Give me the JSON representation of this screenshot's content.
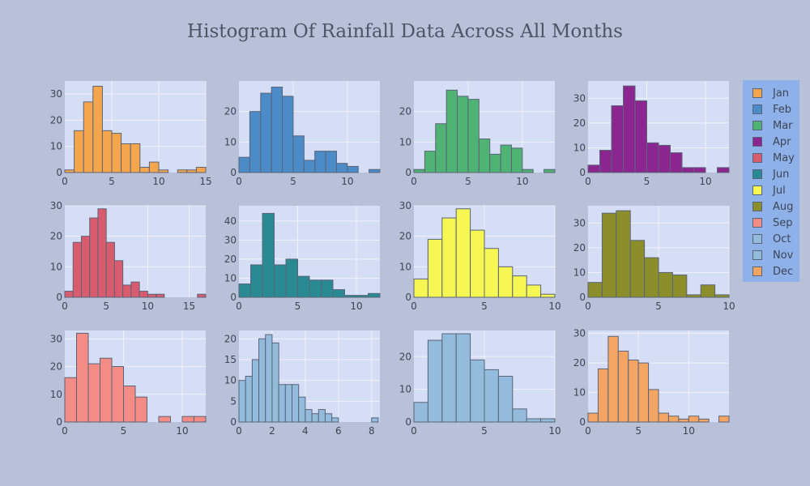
{
  "title": "Histogram Of Rainfall Data Across All Months",
  "colors": {
    "background": "#b9c1d9",
    "plot_background": "#d6def5",
    "legend_background": "#8fb1ea",
    "bar_outline": "#5a6478"
  },
  "legend": {
    "placement": "right",
    "items": [
      {
        "label": "Jan",
        "color": "#f5a54c"
      },
      {
        "label": "Feb",
        "color": "#4b8bc8"
      },
      {
        "label": "Mar",
        "color": "#4fb374"
      },
      {
        "label": "Apr",
        "color": "#8b2590"
      },
      {
        "label": "May",
        "color": "#d85b6e"
      },
      {
        "label": "Jun",
        "color": "#2a8a94"
      },
      {
        "label": "Jul",
        "color": "#f7f753"
      },
      {
        "label": "Aug",
        "color": "#8c8e2a"
      },
      {
        "label": "Sep",
        "color": "#f28c85"
      },
      {
        "label": "Oct",
        "color": "#93bbdc"
      },
      {
        "label": "Nov",
        "color": "#93bbdc"
      },
      {
        "label": "Dec",
        "color": "#f5a563"
      }
    ]
  },
  "chart_data": [
    {
      "type": "bar",
      "name": "Jan",
      "color": "#f5a54c",
      "grid": true,
      "xlim": [
        0,
        15
      ],
      "ylim": [
        0,
        35
      ],
      "xticks": [
        0,
        5,
        10,
        15
      ],
      "yticks": [
        0,
        10,
        20,
        30
      ],
      "bin_start": 0,
      "bin_width": 1,
      "values": [
        1,
        16,
        27,
        33,
        16,
        15,
        11,
        11,
        2,
        4,
        1,
        0,
        1,
        1,
        2
      ]
    },
    {
      "type": "bar",
      "name": "Feb",
      "color": "#4b8bc8",
      "grid": true,
      "xlim": [
        0,
        13
      ],
      "ylim": [
        0,
        30
      ],
      "xticks": [
        0,
        5,
        10
      ],
      "yticks": [
        0,
        10,
        20
      ],
      "bin_start": 0,
      "bin_width": 1,
      "values": [
        5,
        20,
        26,
        28,
        25,
        12,
        4,
        7,
        7,
        3,
        2,
        0,
        1
      ]
    },
    {
      "type": "bar",
      "name": "Mar",
      "color": "#4fb374",
      "grid": true,
      "xlim": [
        0,
        13
      ],
      "ylim": [
        0,
        30
      ],
      "xticks": [
        0,
        5,
        10
      ],
      "yticks": [
        0,
        10,
        20
      ],
      "bin_start": 0,
      "bin_width": 1,
      "values": [
        1,
        7,
        16,
        27,
        25,
        24,
        11,
        6,
        9,
        8,
        1,
        0,
        1
      ]
    },
    {
      "type": "bar",
      "name": "Apr",
      "color": "#8b2590",
      "grid": true,
      "xlim": [
        0,
        12
      ],
      "ylim": [
        0,
        37
      ],
      "xticks": [
        0,
        5,
        10
      ],
      "yticks": [
        0,
        10,
        20,
        30
      ],
      "bin_start": 0,
      "bin_width": 1,
      "values": [
        3,
        9,
        27,
        35,
        29,
        12,
        11,
        8,
        2,
        2,
        0,
        2
      ]
    },
    {
      "type": "bar",
      "name": "May",
      "color": "#d85b6e",
      "grid": true,
      "xlim": [
        0,
        17
      ],
      "ylim": [
        0,
        30
      ],
      "xticks": [
        0,
        5,
        10,
        15
      ],
      "yticks": [
        0,
        10,
        20,
        30
      ],
      "bin_start": 0,
      "bin_width": 1,
      "values": [
        2,
        18,
        20,
        26,
        29,
        18,
        12,
        4,
        5,
        2,
        1,
        1,
        0,
        0,
        0,
        0,
        1
      ]
    },
    {
      "type": "bar",
      "name": "Jun",
      "color": "#2a8a94",
      "grid": true,
      "xlim": [
        0,
        12
      ],
      "ylim": [
        0,
        48
      ],
      "xticks": [
        0,
        5,
        10
      ],
      "yticks": [
        0,
        10,
        20,
        30,
        40
      ],
      "bin_start": 0,
      "bin_width": 1,
      "values": [
        7,
        17,
        44,
        17,
        20,
        11,
        9,
        9,
        4,
        1,
        1,
        2
      ]
    },
    {
      "type": "bar",
      "name": "Jul",
      "color": "#f7f753",
      "grid": true,
      "xlim": [
        0,
        10
      ],
      "ylim": [
        0,
        30
      ],
      "xticks": [
        0,
        5,
        10
      ],
      "yticks": [
        0,
        10,
        20,
        30
      ],
      "bin_start": 0,
      "bin_width": 1,
      "values": [
        6,
        19,
        26,
        29,
        22,
        16,
        10,
        7,
        4,
        1
      ]
    },
    {
      "type": "bar",
      "name": "Aug",
      "color": "#8c8e2a",
      "grid": true,
      "xlim": [
        0,
        10
      ],
      "ylim": [
        0,
        37
      ],
      "xticks": [
        0,
        5,
        10
      ],
      "yticks": [
        0,
        10,
        20,
        30
      ],
      "bin_start": 0,
      "bin_width": 1,
      "values": [
        6,
        34,
        35,
        23,
        16,
        10,
        9,
        1,
        5,
        1
      ]
    },
    {
      "type": "bar",
      "name": "Sep",
      "color": "#f28c85",
      "grid": true,
      "xlim": [
        0,
        12
      ],
      "ylim": [
        0,
        33
      ],
      "xticks": [
        0,
        5,
        10
      ],
      "yticks": [
        0,
        10,
        20,
        30
      ],
      "bin_start": 0,
      "bin_width": 1,
      "values": [
        16,
        32,
        21,
        23,
        20,
        13,
        9,
        0,
        2,
        0,
        2,
        2
      ]
    },
    {
      "type": "bar",
      "name": "Oct",
      "color": "#93bbdc",
      "grid": true,
      "xlim": [
        0,
        8.5
      ],
      "ylim": [
        0,
        22
      ],
      "xticks": [
        0,
        2,
        4,
        6,
        8
      ],
      "yticks": [
        0,
        5,
        10,
        15,
        20
      ],
      "bin_start": 0,
      "bin_width": 0.4,
      "values": [
        10,
        11,
        15,
        20,
        21,
        19,
        9,
        9,
        9,
        6,
        3,
        2,
        3,
        2,
        1,
        0,
        0,
        0,
        0,
        0,
        1
      ]
    },
    {
      "type": "bar",
      "name": "Nov",
      "color": "#93bbdc",
      "grid": true,
      "xlim": [
        0,
        10
      ],
      "ylim": [
        0,
        28
      ],
      "xticks": [
        0,
        5,
        10
      ],
      "yticks": [
        0,
        10,
        20
      ],
      "bin_start": 0,
      "bin_width": 1,
      "values": [
        6,
        25,
        27,
        27,
        19,
        16,
        14,
        4,
        1,
        1
      ]
    },
    {
      "type": "bar",
      "name": "Dec",
      "color": "#f5a563",
      "grid": true,
      "xlim": [
        0,
        14
      ],
      "ylim": [
        0,
        31
      ],
      "xticks": [
        0,
        5,
        10
      ],
      "yticks": [
        0,
        10,
        20,
        30
      ],
      "bin_start": 0,
      "bin_width": 1,
      "values": [
        3,
        18,
        29,
        24,
        21,
        20,
        11,
        3,
        2,
        1,
        2,
        1,
        0,
        2
      ]
    }
  ]
}
